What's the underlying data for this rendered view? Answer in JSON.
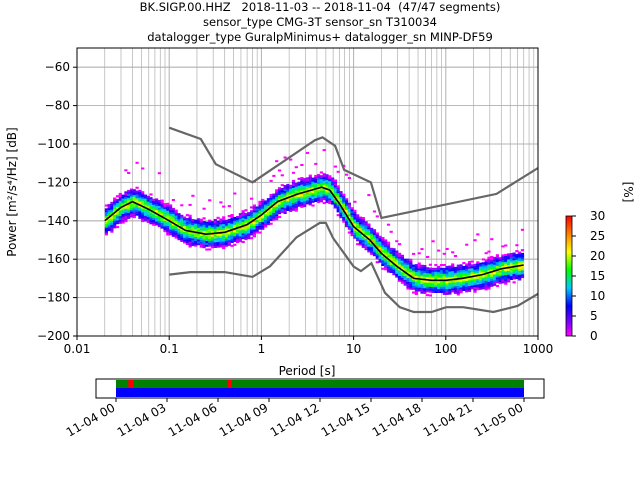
{
  "title_lines": [
    "BK.SIGP.00.HHZ   2018-11-03 -- 2018-11-04  (47/47 segments)",
    "sensor_type CMG-3T sensor_sn T310034",
    "datalogger_type GuralpMinimus+ datalogger_sn MINP-DF59"
  ],
  "chart_data": {
    "type": "heatmap",
    "xlabel": "Period [s]",
    "ylabel": "Power [m²/s⁴/Hz] [dB]",
    "xscale": "log",
    "xlim": [
      0.01,
      1000
    ],
    "ylim": [
      -200,
      -50
    ],
    "x_ticks": [
      "0.01",
      "0.1",
      "1",
      "10",
      "100",
      "1000"
    ],
    "y_ticks": [
      "−60",
      "−80",
      "−100",
      "−120",
      "−140",
      "−160",
      "−180",
      "−200"
    ],
    "grid": true,
    "colorbar": {
      "label": "[%]",
      "ticks": [
        "0",
        "5",
        "10",
        "15",
        "20",
        "25",
        "30"
      ],
      "range": [
        0,
        30
      ],
      "colormap": "pqlx"
    },
    "nhnm": {
      "name": "NHNM",
      "period": [
        0.1,
        0.22,
        0.32,
        0.8,
        3.8,
        4.6,
        6.3,
        7.9,
        15.4,
        20,
        354.8,
        1000
      ],
      "power": [
        -91.5,
        -97.4,
        -110.5,
        -120,
        -98,
        -96.5,
        -101,
        -113.5,
        -120,
        -138.5,
        -126,
        -112.5
      ]
    },
    "nlnm": {
      "name": "NLNM",
      "period": [
        0.1,
        0.17,
        0.4,
        0.8,
        1.24,
        2.4,
        4.3,
        5.0,
        6.0,
        10.0,
        12.0,
        15.6,
        21.9,
        31.6,
        45.0,
        70.0,
        101.0,
        154.0,
        328.0,
        600.0,
        1000
      ],
      "power": [
        -168,
        -166.7,
        -166.7,
        -169.2,
        -163.7,
        -148.6,
        -141.1,
        -141.1,
        -149,
        -163.8,
        -166.2,
        -162.1,
        -177.5,
        -185,
        -187.5,
        -187.5,
        -185,
        -185,
        -187.5,
        -184.4,
        -178
      ]
    },
    "mean_psd": {
      "name": "mean",
      "period": [
        0.02,
        0.03,
        0.04,
        0.06,
        0.1,
        0.15,
        0.25,
        0.4,
        0.7,
        1.0,
        1.5,
        2.5,
        3.5,
        4.5,
        5.5,
        7,
        10,
        15,
        20,
        30,
        45,
        70,
        100,
        150,
        250,
        400,
        700
      ],
      "power": [
        -140,
        -133,
        -130,
        -134,
        -140,
        -145,
        -147,
        -146,
        -142,
        -137,
        -130,
        -126,
        -124,
        -122.5,
        -124,
        -131,
        -143,
        -150,
        -157,
        -164,
        -170,
        -171,
        -171,
        -170,
        -168,
        -165,
        -163
      ]
    },
    "time_axis": {
      "tick_labels": [
        "11-04 00",
        "11-04 03",
        "11-04 06",
        "11-04 09",
        "11-04 12",
        "11-04 15",
        "11-04 18",
        "11-04 21",
        "11-05 00"
      ],
      "span_hours": 24,
      "coverage_start_hour": 0,
      "coverage_end_hour": 24,
      "gap_markers_hour": [
        0.9,
        6.7
      ],
      "colors": {
        "data": "#0000ff",
        "overlap": "#008000",
        "gap": "#ff0000"
      }
    }
  }
}
